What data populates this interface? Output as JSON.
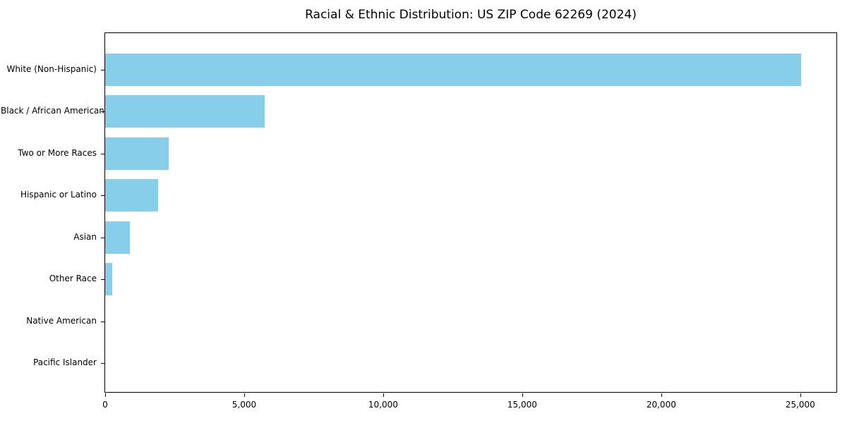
{
  "chart_data": {
    "type": "bar",
    "orientation": "horizontal",
    "title": "Racial & Ethnic Distribution: US ZIP Code 62269 (2024)",
    "categories": [
      "White (Non-Hispanic)",
      "Black / African American",
      "Two or More Races",
      "Hispanic or Latino",
      "Asian",
      "Other Race",
      "Native American",
      "Pacific Islander"
    ],
    "values": [
      25080,
      5750,
      2300,
      1920,
      880,
      250,
      0,
      0
    ],
    "xlabel": "",
    "ylabel": "",
    "xlim": [
      0,
      26350
    ],
    "x_ticks": [
      {
        "value": 0,
        "label": "0"
      },
      {
        "value": 5000,
        "label": "5,000"
      },
      {
        "value": 10000,
        "label": "10,000"
      },
      {
        "value": 15000,
        "label": "15,000"
      },
      {
        "value": 20000,
        "label": "20,000"
      },
      {
        "value": 25000,
        "label": "25,000"
      }
    ],
    "bar_color": "#87CEEB",
    "grid": false,
    "legend": false,
    "background_color": "#ffffff",
    "spine_color": "#000000",
    "text_color": "#000000"
  }
}
